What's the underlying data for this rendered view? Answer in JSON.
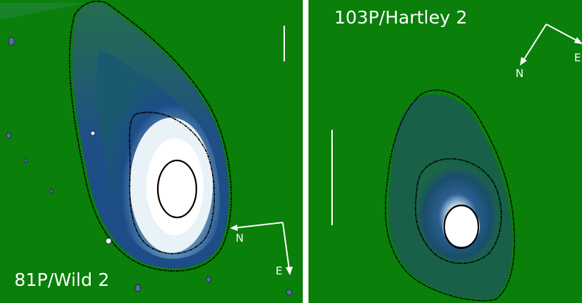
{
  "panels": [
    {
      "title": "81P/Wild 2",
      "compass": {
        "north": "N",
        "east": "E"
      }
    },
    {
      "title": "103P/Hartley 2",
      "compass": {
        "north": "N",
        "east": "E"
      }
    }
  ],
  "colors": {
    "background": "#0a7f0a",
    "coma_outer": "#1f4f86",
    "coma_inner": "#7ea9c9",
    "core": "#ffffff",
    "contour": "#000000",
    "annotation": "#ffffff"
  }
}
